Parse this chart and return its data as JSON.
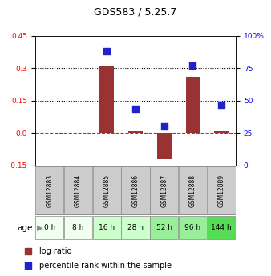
{
  "title": "GDS583 / 5.25.7",
  "samples": [
    "GSM12883",
    "GSM12884",
    "GSM12885",
    "GSM12886",
    "GSM12887",
    "GSM12888",
    "GSM12889"
  ],
  "ages": [
    "0 h",
    "8 h",
    "16 h",
    "28 h",
    "52 h",
    "96 h",
    "144 h"
  ],
  "age_colors": [
    "#f0fff0",
    "#f0fff0",
    "#ccffcc",
    "#ccffcc",
    "#99ee99",
    "#99ee99",
    "#55dd55"
  ],
  "log_ratio": [
    0.0,
    0.0,
    0.31,
    0.01,
    -0.12,
    0.26,
    0.01
  ],
  "percentile_rank": [
    null,
    null,
    88,
    44,
    30,
    77,
    47
  ],
  "left_ylim": [
    -0.15,
    0.45
  ],
  "right_ylim": [
    0,
    100
  ],
  "left_yticks": [
    -0.15,
    0.0,
    0.15,
    0.3,
    0.45
  ],
  "right_yticks": [
    0,
    25,
    50,
    75,
    100
  ],
  "right_yticklabels": [
    "0",
    "25",
    "50",
    "75",
    "100%"
  ],
  "hlines": [
    0.0,
    0.15,
    0.3
  ],
  "hline_styles": [
    "dashed",
    "dotted",
    "dotted"
  ],
  "hline_colors": [
    "#cc2222",
    "#000000",
    "#000000"
  ],
  "bar_color": "#993333",
  "dot_color": "#2222cc",
  "bar_width": 0.5,
  "dot_size": 35,
  "sample_box_color": "#cccccc",
  "background_color": "#ffffff"
}
